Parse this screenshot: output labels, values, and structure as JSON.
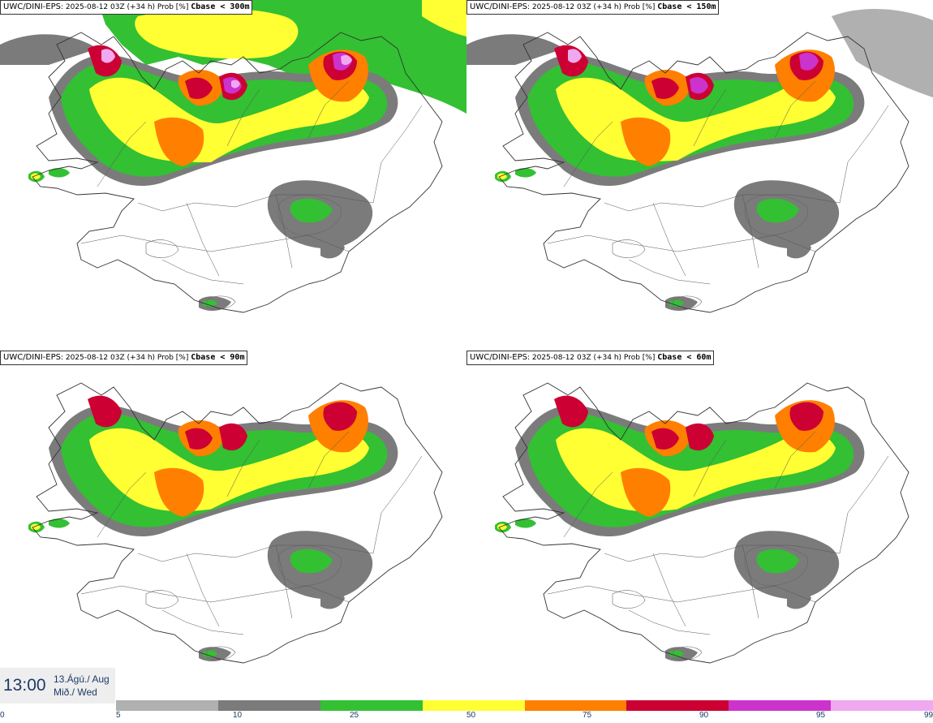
{
  "panels": [
    {
      "model": "UWC/DINI-EPS",
      "run": ": 2025-08-12 03Z (+34 h) Prob [%]",
      "threshold": "Cbase < 300m",
      "level": 4
    },
    {
      "model": "UWC/DINI-EPS",
      "run": ": 2025-08-12 03Z (+34 h) Prob [%]",
      "threshold": "Cbase < 150m",
      "level": 3
    },
    {
      "model": "UWC/DINI-EPS",
      "run": ": 2025-08-12 03Z (+34 h) Prob [%]",
      "threshold": "Cbase < 90m",
      "level": 2
    },
    {
      "model": "UWC/DINI-EPS",
      "run": ": 2025-08-12 03Z (+34 h) Prob [%]",
      "threshold": "Cbase < 60m",
      "level": 2
    }
  ],
  "valid_time": {
    "time": "13:00",
    "date_line": "13.Ágú./ Aug",
    "day_line": "Mið./ Wed"
  },
  "legend": {
    "ticks": [
      "0",
      "5",
      "10",
      "25",
      "50",
      "75",
      "90",
      "95",
      "99"
    ],
    "colors": [
      "#b0b0b0",
      "#7b7b7b",
      "#33c033",
      "#ffff33",
      "#ff7f00",
      "#cc0033",
      "#cc33cc",
      "#f0a8f0"
    ]
  },
  "map_colors": {
    "p5": "#b0b0b0",
    "p10": "#7b7b7b",
    "p25": "#33c033",
    "p50": "#ffff33",
    "p75": "#ff7f00",
    "p90": "#cc0033",
    "p95": "#cc33cc",
    "p99": "#f0a8f0"
  }
}
